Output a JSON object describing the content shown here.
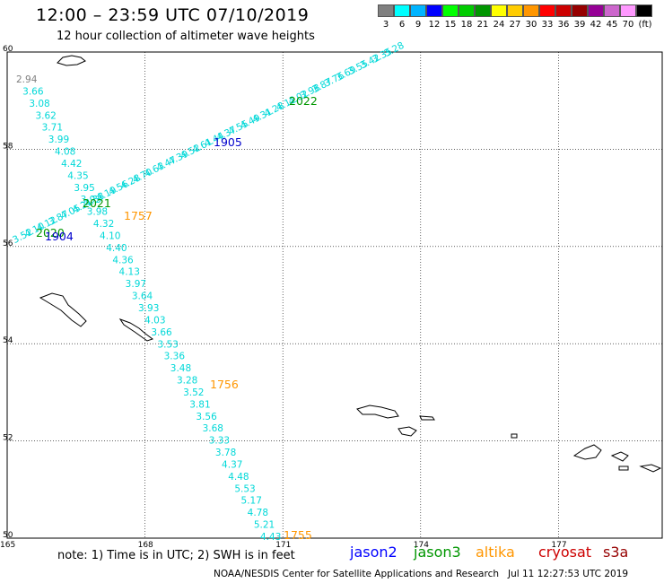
{
  "header": {
    "title": "12:00 – 23:59 UTC 07/10/2019",
    "subtitle": "12 hour collection of altimeter wave heights"
  },
  "color_scale": {
    "colors": [
      "#808080",
      "#00ffff",
      "#00b4ff",
      "#0000ff",
      "#00ff00",
      "#00cc00",
      "#009600",
      "#ffff00",
      "#ffcc00",
      "#ff9600",
      "#ff0000",
      "#cc0000",
      "#960000",
      "#960096",
      "#cc66cc",
      "#ff99ff",
      "#000000"
    ],
    "labels": [
      "3",
      "6",
      "9",
      "12",
      "15",
      "18",
      "21",
      "24",
      "27",
      "30",
      "33",
      "36",
      "39",
      "42",
      "45",
      "70",
      "(ft)"
    ]
  },
  "map": {
    "lat_labels": [
      "60",
      "58",
      "56",
      "54",
      "52",
      "50"
    ],
    "lon_labels": [
      "165",
      "168",
      "171",
      "174",
      "177"
    ],
    "lat_values": [
      60,
      58,
      56,
      54,
      52,
      50
    ],
    "lon_values": [
      165,
      168,
      171,
      174,
      177
    ],
    "southern_track_values": [
      "2.94",
      "3.66",
      "3.08",
      "3.62",
      "3.71",
      "3.99",
      "4.08",
      "4.42",
      "4.35",
      "3.95",
      "3.93",
      "3.98",
      "4.32",
      "4.10",
      "4.40",
      "4.36",
      "4.13",
      "3.97",
      "3.64",
      "3.93",
      "4.03",
      "3.66",
      "3.53",
      "3.36",
      "3.48",
      "3.28",
      "3.52",
      "3.81",
      "3.56",
      "3.68",
      "3.33",
      "3.78",
      "4.37",
      "4.48",
      "5.53",
      "5.17",
      "4.78",
      "5.21",
      "4.43"
    ],
    "northeast_track_values": [
      "3.52",
      "4.10",
      "4.12",
      "3.87",
      "4.05",
      "4.21",
      "4.33",
      "4.19",
      "4.56",
      "4.28",
      "4.70",
      "4.63",
      "4.47",
      "4.39",
      "4.52",
      "4.61",
      "4.44",
      "4.37",
      "4.55",
      "4.49",
      "4.31",
      "4.28",
      "4.12",
      "4.02",
      "3.98",
      "3.87",
      "3.76",
      "3.69",
      "3.55",
      "3.42",
      "3.35",
      "3.28"
    ],
    "pass_times": [
      {
        "text": "2021",
        "color": "#009600"
      },
      {
        "text": "1757",
        "color": "#ff9600"
      },
      {
        "text": "2020",
        "color": "#009600"
      },
      {
        "text": "1904",
        "color": "#0000cc"
      },
      {
        "text": "1905",
        "color": "#0000cc"
      },
      {
        "text": "2022",
        "color": "#009600"
      },
      {
        "text": "1756",
        "color": "#ff9600"
      },
      {
        "text": "1755",
        "color": "#ff9600"
      }
    ]
  },
  "footer": {
    "note": "note: 1) Time is in UTC; 2) SWH is in feet",
    "satellites": [
      {
        "name": "jason2",
        "color": "#0000ff"
      },
      {
        "name": "jason3",
        "color": "#009600"
      },
      {
        "name": "altika",
        "color": "#ff9600"
      },
      {
        "name": "cryosat",
        "color": "#cc0000"
      },
      {
        "name": "s3a",
        "color": "#960000"
      }
    ],
    "credit": "NOAA/NESDIS Center for Satellite Applications and Research",
    "timestamp": "Jul 11 12:27:53 UTC 2019"
  }
}
